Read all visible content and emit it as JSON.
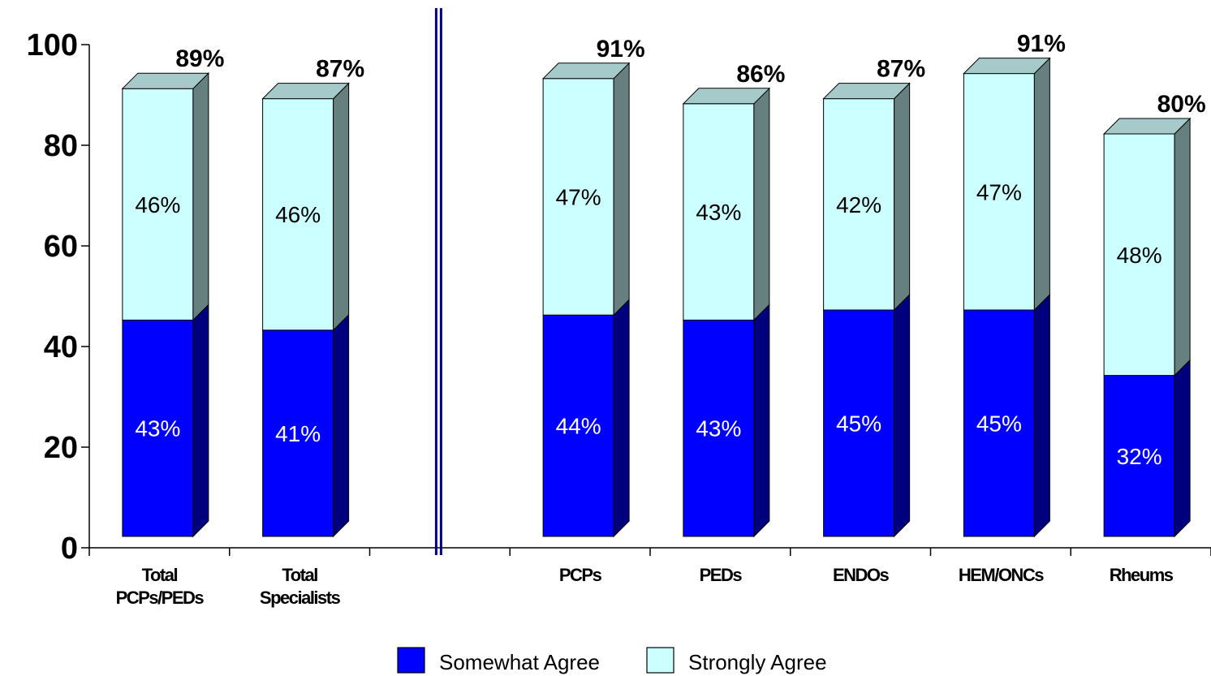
{
  "colors": {
    "somewhat_front": "#0000FF",
    "somewhat_side": "#00007F",
    "strongly_front": "#CCFFFF",
    "strongly_side": "#668080",
    "strongly_top": "#A6CACA",
    "divider": "#000080"
  },
  "chart_data": {
    "type": "bar",
    "stacked": true,
    "three_d": true,
    "ylim": [
      0,
      100
    ],
    "yticks": [
      0,
      20,
      40,
      60,
      80,
      100
    ],
    "ytick_labels": [
      "0",
      "20",
      "40",
      "60",
      "80",
      "100"
    ],
    "xlabel": "",
    "ylabel": "",
    "title": "",
    "categories": [
      "Total PCPs/PEDs",
      "Total Specialists",
      "",
      "PCPs",
      "PEDs",
      "ENDOs",
      "HEM/ONCs",
      "Rheums"
    ],
    "category_lines": [
      [
        "Total",
        "PCPs/PEDs"
      ],
      [
        "Total",
        "Specialists"
      ],
      [],
      [
        "PCPs"
      ],
      [
        "PEDs"
      ],
      [
        "ENDOs"
      ],
      [
        "HEM/ONCs"
      ],
      [
        "Rheums"
      ]
    ],
    "series": [
      {
        "name": "Somewhat Agree",
        "values": [
          43,
          41,
          null,
          44,
          43,
          45,
          45,
          32
        ],
        "labels": [
          "43%",
          "41%",
          "",
          "44%",
          "43%",
          "45%",
          "45%",
          "32%"
        ]
      },
      {
        "name": "Strongly Agree",
        "values": [
          46,
          46,
          null,
          47,
          43,
          42,
          47,
          48
        ],
        "labels": [
          "46%",
          "46%",
          "",
          "47%",
          "43%",
          "42%",
          "47%",
          "48%"
        ]
      }
    ],
    "totals": [
      89,
      87,
      null,
      91,
      86,
      87,
      91,
      80
    ],
    "total_labels": [
      "89%",
      "87%",
      "",
      "91%",
      "86%",
      "87%",
      "91%",
      "80%"
    ],
    "divider_after_category": 2,
    "legend_position": "bottom"
  }
}
